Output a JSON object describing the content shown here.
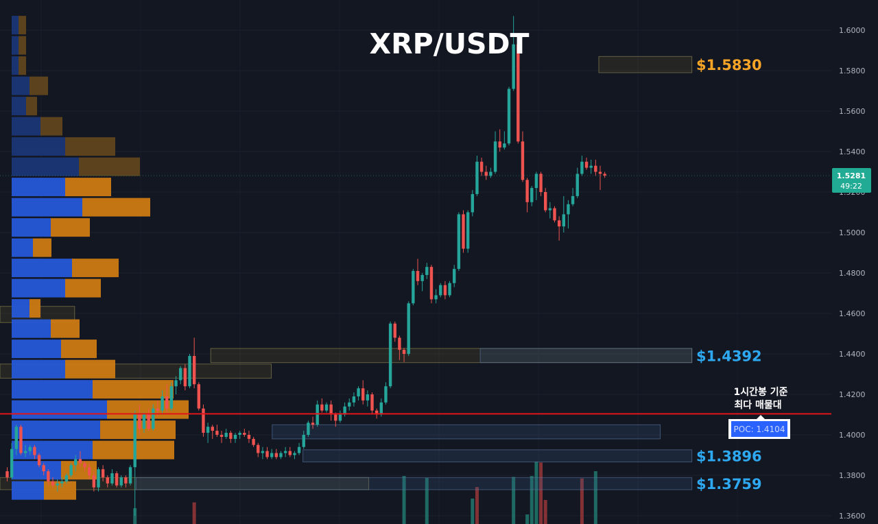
{
  "title": "XRP/USDT",
  "chart_data": {
    "type": "candlestick",
    "title": "XRP/USDT",
    "ylim": [
      1.355,
      1.612
    ],
    "y_ticks": [
      "1.6000",
      "1.5800",
      "1.5600",
      "1.5400",
      "1.5200",
      "1.5000",
      "1.4800",
      "1.4600",
      "1.4400",
      "1.4200",
      "1.4000",
      "1.3800",
      "1.3600"
    ],
    "current_price": {
      "value": "1.5281",
      "countdown": "49:22"
    },
    "poc": {
      "label": "POC: 1.4104",
      "value": 1.4104,
      "note_line1": "1시간봉 기준",
      "note_line2": "최다 매물대"
    },
    "levels": [
      {
        "label": "$1.5830",
        "color": "#f7a526",
        "value": 1.583
      },
      {
        "label": "$1.4392",
        "color": "#2ea8f0",
        "value": 1.4392
      },
      {
        "label": "$1.3896",
        "color": "#2ea8f0",
        "value": 1.3896
      },
      {
        "label": "$1.3759",
        "color": "#2ea8f0",
        "value": 1.3759
      }
    ],
    "zones": [
      {
        "price": 1.583,
        "height": 0.008,
        "x0": 0.682,
        "x1": 0.788,
        "color": "gold"
      },
      {
        "price": 1.4392,
        "height": 0.007,
        "x0": 0.24,
        "x1": 0.788,
        "color": "gold"
      },
      {
        "price": 1.4392,
        "height": 0.007,
        "x0": 0.547,
        "x1": 0.788,
        "color": "blue"
      },
      {
        "price": 1.4315,
        "height": 0.007,
        "x0": 0.0,
        "x1": 0.309,
        "color": "gold"
      },
      {
        "price": 1.4015,
        "height": 0.007,
        "x0": 0.31,
        "x1": 0.752,
        "color": "blue"
      },
      {
        "price": 1.3896,
        "height": 0.006,
        "x0": 0.345,
        "x1": 0.788,
        "color": "blue"
      },
      {
        "price": 1.3759,
        "height": 0.006,
        "x0": 0.0,
        "x1": 0.42,
        "color": "gold"
      },
      {
        "price": 1.3759,
        "height": 0.006,
        "x0": 0.155,
        "x1": 0.788,
        "color": "blue"
      },
      {
        "price": 1.4595,
        "height": 0.008,
        "x0": 0.0,
        "x1": 0.085,
        "color": "gold"
      }
    ],
    "volume_profile": [
      {
        "price": 1.6025,
        "up": 0.1,
        "down": 0.11
      },
      {
        "price": 1.5925,
        "up": 0.1,
        "down": 0.11
      },
      {
        "price": 1.5825,
        "up": 0.1,
        "down": 0.11
      },
      {
        "price": 1.5725,
        "up": 0.26,
        "down": 0.27
      },
      {
        "price": 1.5625,
        "up": 0.21,
        "down": 0.16
      },
      {
        "price": 1.5525,
        "up": 0.42,
        "down": 0.32
      },
      {
        "price": 1.5425,
        "up": 0.78,
        "down": 0.73
      },
      {
        "price": 1.5325,
        "up": 0.98,
        "down": 0.89
      },
      {
        "price": 1.5225,
        "up": 0.78,
        "down": 0.67
      },
      {
        "price": 1.5125,
        "up": 1.03,
        "down": 0.99
      },
      {
        "price": 1.5025,
        "up": 0.57,
        "down": 0.57
      },
      {
        "price": 1.4925,
        "up": 0.31,
        "down": 0.27
      },
      {
        "price": 1.4825,
        "up": 0.88,
        "down": 0.68
      },
      {
        "price": 1.4725,
        "up": 0.78,
        "down": 0.52
      },
      {
        "price": 1.4625,
        "up": 0.26,
        "down": 0.16
      },
      {
        "price": 1.4525,
        "up": 0.57,
        "down": 0.42
      },
      {
        "price": 1.4425,
        "up": 0.72,
        "down": 0.52
      },
      {
        "price": 1.4325,
        "up": 0.78,
        "down": 0.73
      },
      {
        "price": 1.4225,
        "up": 1.18,
        "down": 1.18
      },
      {
        "price": 1.4125,
        "up": 1.39,
        "down": 1.19
      },
      {
        "price": 1.4025,
        "up": 1.29,
        "down": 1.1
      },
      {
        "price": 1.3925,
        "up": 1.18,
        "down": 1.19
      },
      {
        "price": 1.3825,
        "up": 0.72,
        "down": 0.52
      },
      {
        "price": 1.3725,
        "up": 0.47,
        "down": 0.47
      }
    ],
    "candles": [
      [
        1.382,
        1.384,
        1.377,
        1.379
      ],
      [
        1.379,
        1.396,
        1.378,
        1.393
      ],
      [
        1.393,
        1.405,
        1.39,
        1.404
      ],
      [
        1.404,
        1.405,
        1.39,
        1.391
      ],
      [
        1.391,
        1.395,
        1.389,
        1.392
      ],
      [
        1.392,
        1.395,
        1.39,
        1.394
      ],
      [
        1.394,
        1.395,
        1.388,
        1.39
      ],
      [
        1.39,
        1.391,
        1.384,
        1.385
      ],
      [
        1.385,
        1.386,
        1.38,
        1.382
      ],
      [
        1.382,
        1.383,
        1.375,
        1.377
      ],
      [
        1.377,
        1.379,
        1.374,
        1.375
      ],
      [
        1.375,
        1.378,
        1.372,
        1.376
      ],
      [
        1.376,
        1.379,
        1.374,
        1.377
      ],
      [
        1.377,
        1.381,
        1.376,
        1.38
      ],
      [
        1.38,
        1.386,
        1.379,
        1.385
      ],
      [
        1.385,
        1.39,
        1.382,
        1.388
      ],
      [
        1.388,
        1.392,
        1.384,
        1.386
      ],
      [
        1.386,
        1.387,
        1.382,
        1.384
      ],
      [
        1.384,
        1.386,
        1.378,
        1.38
      ],
      [
        1.38,
        1.382,
        1.372,
        1.374
      ],
      [
        1.374,
        1.384,
        1.372,
        1.383
      ],
      [
        1.383,
        1.385,
        1.377,
        1.379
      ],
      [
        1.379,
        1.38,
        1.374,
        1.376
      ],
      [
        1.376,
        1.383,
        1.375,
        1.381
      ],
      [
        1.381,
        1.382,
        1.374,
        1.375
      ],
      [
        1.375,
        1.38,
        1.374,
        1.379
      ],
      [
        1.379,
        1.38,
        1.374,
        1.376
      ],
      [
        1.376,
        1.385,
        1.375,
        1.384
      ],
      [
        1.384,
        1.412,
        1.36,
        1.41
      ],
      [
        1.41,
        1.415,
        1.4,
        1.403
      ],
      [
        1.403,
        1.411,
        1.401,
        1.41
      ],
      [
        1.41,
        1.413,
        1.402,
        1.403
      ],
      [
        1.403,
        1.415,
        1.402,
        1.413
      ],
      [
        1.413,
        1.417,
        1.409,
        1.412
      ],
      [
        1.412,
        1.422,
        1.41,
        1.419
      ],
      [
        1.419,
        1.425,
        1.411,
        1.413
      ],
      [
        1.413,
        1.426,
        1.412,
        1.424
      ],
      [
        1.424,
        1.429,
        1.42,
        1.427
      ],
      [
        1.427,
        1.434,
        1.425,
        1.433
      ],
      [
        1.433,
        1.435,
        1.422,
        1.424
      ],
      [
        1.424,
        1.44,
        1.423,
        1.439
      ],
      [
        1.439,
        1.448,
        1.423,
        1.425
      ],
      [
        1.425,
        1.426,
        1.412,
        1.413
      ],
      [
        1.413,
        1.415,
        1.399,
        1.401
      ],
      [
        1.401,
        1.406,
        1.396,
        1.404
      ],
      [
        1.404,
        1.405,
        1.398,
        1.402
      ],
      [
        1.402,
        1.405,
        1.399,
        1.4
      ],
      [
        1.4,
        1.402,
        1.396,
        1.399
      ],
      [
        1.399,
        1.403,
        1.398,
        1.401
      ],
      [
        1.401,
        1.402,
        1.396,
        1.398
      ],
      [
        1.398,
        1.401,
        1.396,
        1.4
      ],
      [
        1.4,
        1.402,
        1.398,
        1.401
      ],
      [
        1.401,
        1.403,
        1.399,
        1.4
      ],
      [
        1.4,
        1.402,
        1.396,
        1.398
      ],
      [
        1.398,
        1.399,
        1.394,
        1.395
      ],
      [
        1.395,
        1.396,
        1.389,
        1.391
      ],
      [
        1.391,
        1.394,
        1.388,
        1.392
      ],
      [
        1.392,
        1.394,
        1.388,
        1.389
      ],
      [
        1.389,
        1.393,
        1.388,
        1.391
      ],
      [
        1.391,
        1.393,
        1.388,
        1.389
      ],
      [
        1.389,
        1.392,
        1.388,
        1.391
      ],
      [
        1.391,
        1.394,
        1.389,
        1.392
      ],
      [
        1.392,
        1.394,
        1.389,
        1.39
      ],
      [
        1.39,
        1.392,
        1.388,
        1.391
      ],
      [
        1.391,
        1.396,
        1.39,
        1.394
      ],
      [
        1.394,
        1.402,
        1.393,
        1.4
      ],
      [
        1.4,
        1.407,
        1.399,
        1.406
      ],
      [
        1.406,
        1.409,
        1.403,
        1.405
      ],
      [
        1.405,
        1.417,
        1.404,
        1.415
      ],
      [
        1.415,
        1.418,
        1.411,
        1.412
      ],
      [
        1.412,
        1.416,
        1.411,
        1.415
      ],
      [
        1.415,
        1.417,
        1.407,
        1.41
      ],
      [
        1.41,
        1.411,
        1.404,
        1.407
      ],
      [
        1.407,
        1.412,
        1.406,
        1.41
      ],
      [
        1.41,
        1.416,
        1.409,
        1.414
      ],
      [
        1.414,
        1.418,
        1.412,
        1.416
      ],
      [
        1.416,
        1.421,
        1.414,
        1.419
      ],
      [
        1.419,
        1.424,
        1.417,
        1.423
      ],
      [
        1.423,
        1.427,
        1.415,
        1.417
      ],
      [
        1.417,
        1.422,
        1.414,
        1.42
      ],
      [
        1.42,
        1.421,
        1.41,
        1.412
      ],
      [
        1.412,
        1.413,
        1.408,
        1.41
      ],
      [
        1.41,
        1.418,
        1.409,
        1.416
      ],
      [
        1.416,
        1.426,
        1.415,
        1.424
      ],
      [
        1.424,
        1.456,
        1.423,
        1.455
      ],
      [
        1.455,
        1.456,
        1.446,
        1.448
      ],
      [
        1.448,
        1.449,
        1.437,
        1.442
      ],
      [
        1.442,
        1.443,
        1.436,
        1.44
      ],
      [
        1.44,
        1.466,
        1.439,
        1.465
      ],
      [
        1.465,
        1.482,
        1.464,
        1.481
      ],
      [
        1.481,
        1.487,
        1.474,
        1.476
      ],
      [
        1.476,
        1.48,
        1.471,
        1.479
      ],
      [
        1.479,
        1.485,
        1.477,
        1.483
      ],
      [
        1.483,
        1.484,
        1.465,
        1.467
      ],
      [
        1.467,
        1.472,
        1.465,
        1.469
      ],
      [
        1.469,
        1.475,
        1.468,
        1.474
      ],
      [
        1.474,
        1.476,
        1.467,
        1.469
      ],
      [
        1.469,
        1.476,
        1.468,
        1.475
      ],
      [
        1.475,
        1.484,
        1.473,
        1.482
      ],
      [
        1.482,
        1.51,
        1.481,
        1.509
      ],
      [
        1.509,
        1.511,
        1.49,
        1.492
      ],
      [
        1.492,
        1.511,
        1.49,
        1.51
      ],
      [
        1.51,
        1.521,
        1.508,
        1.519
      ],
      [
        1.519,
        1.538,
        1.518,
        1.535
      ],
      [
        1.535,
        1.537,
        1.528,
        1.53
      ],
      [
        1.53,
        1.533,
        1.526,
        1.528
      ],
      [
        1.528,
        1.532,
        1.527,
        1.53
      ],
      [
        1.53,
        1.55,
        1.529,
        1.545
      ],
      [
        1.545,
        1.551,
        1.54,
        1.542
      ],
      [
        1.542,
        1.55,
        1.541,
        1.544
      ],
      [
        1.544,
        1.572,
        1.543,
        1.571
      ],
      [
        1.571,
        1.607,
        1.57,
        1.593
      ],
      [
        1.593,
        1.594,
        1.544,
        1.545
      ],
      [
        1.545,
        1.55,
        1.525,
        1.526
      ],
      [
        1.526,
        1.527,
        1.51,
        1.515
      ],
      [
        1.515,
        1.523,
        1.513,
        1.522
      ],
      [
        1.522,
        1.53,
        1.516,
        1.529
      ],
      [
        1.529,
        1.53,
        1.518,
        1.52
      ],
      [
        1.52,
        1.522,
        1.51,
        1.511
      ],
      [
        1.511,
        1.515,
        1.507,
        1.512
      ],
      [
        1.512,
        1.513,
        1.505,
        1.506
      ],
      [
        1.506,
        1.508,
        1.496,
        1.503
      ],
      [
        1.503,
        1.518,
        1.5,
        1.509
      ],
      [
        1.509,
        1.516,
        1.502,
        1.514
      ],
      [
        1.514,
        1.522,
        1.513,
        1.518
      ],
      [
        1.518,
        1.532,
        1.517,
        1.529
      ],
      [
        1.529,
        1.538,
        1.528,
        1.535
      ],
      [
        1.535,
        1.537,
        1.531,
        1.532
      ],
      [
        1.532,
        1.536,
        1.529,
        1.533
      ],
      [
        1.533,
        1.536,
        1.528,
        1.53
      ],
      [
        1.53,
        1.533,
        1.521,
        1.529
      ],
      [
        1.529,
        1.53,
        1.527,
        1.5281
      ]
    ],
    "volume_bars": [
      {
        "i": 28,
        "h": 0.33,
        "up": true
      },
      {
        "i": 41,
        "h": 0.45,
        "up": false
      },
      {
        "i": 87,
        "h": 1.0,
        "up": true
      },
      {
        "i": 92,
        "h": 0.96,
        "up": true
      },
      {
        "i": 102,
        "h": 0.53,
        "up": true
      },
      {
        "i": 103,
        "h": 0.77,
        "up": false
      },
      {
        "i": 111,
        "h": 0.98,
        "up": true
      },
      {
        "i": 114,
        "h": 0.2,
        "up": true
      },
      {
        "i": 115,
        "h": 1.0,
        "up": true
      },
      {
        "i": 116,
        "h": 1.3,
        "up": true
      },
      {
        "i": 117,
        "h": 1.28,
        "up": false
      },
      {
        "i": 118,
        "h": 0.5,
        "up": false
      },
      {
        "i": 126,
        "h": 0.95,
        "up": false
      },
      {
        "i": 129,
        "h": 1.1,
        "up": true
      }
    ]
  }
}
